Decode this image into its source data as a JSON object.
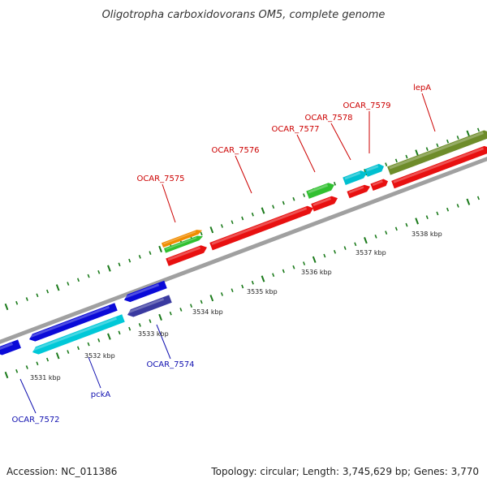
{
  "title": "Oligotropha carboxidovorans OM5, complete genome",
  "footer": {
    "accession": "Accession: NC_011386",
    "summary": "Topology: circular; Length: 3,745,629 bp; Genes: 3,770"
  },
  "colors": {
    "backbone": "#909090",
    "tick": "#1a7a1a",
    "label_red": "#cc0000",
    "label_blue": "#1010b0",
    "leader_red": "#cc0000",
    "leader_blue": "#1010b0"
  },
  "position_ticks": [
    "3531 kbp",
    "3532 kbp",
    "3533 kbp",
    "3534 kbp",
    "3535 kbp",
    "3536 kbp",
    "3537 kbp",
    "3538 kbp"
  ],
  "gene_labels": [
    {
      "text": "OCAR_7575",
      "color": "red"
    },
    {
      "text": "OCAR_7576",
      "color": "red"
    },
    {
      "text": "OCAR_7577",
      "color": "red"
    },
    {
      "text": "OCAR_7578",
      "color": "red"
    },
    {
      "text": "OCAR_7579",
      "color": "red"
    },
    {
      "text": "lepA",
      "color": "red"
    },
    {
      "text": "OCAR_7574",
      "color": "blue"
    },
    {
      "text": "pckA",
      "color": "blue"
    },
    {
      "text": "OCAR_7572",
      "color": "blue"
    }
  ],
  "features": [
    {
      "id": "f1",
      "color": "#0a0ad8",
      "strand": "reverse"
    },
    {
      "id": "f2",
      "color": "#0a0ad8",
      "strand": "reverse"
    },
    {
      "id": "f3",
      "color": "#0a0ad8",
      "strand": "reverse"
    },
    {
      "id": "f4",
      "color": "#00c8d8",
      "strand": "reverse"
    },
    {
      "id": "f5",
      "color": "#3a3aa0",
      "strand": "reverse"
    },
    {
      "id": "f6",
      "color": "#e81010",
      "strand": "forward"
    },
    {
      "id": "f7",
      "color": "#e81010",
      "strand": "forward"
    },
    {
      "id": "f8",
      "color": "#e81010",
      "strand": "forward"
    },
    {
      "id": "f9",
      "color": "#e81010",
      "strand": "forward"
    },
    {
      "id": "f10",
      "color": "#e81010",
      "strand": "forward"
    },
    {
      "id": "f11",
      "color": "#e81010",
      "strand": "forward"
    },
    {
      "id": "f12",
      "color": "#f08c00",
      "strand": "forward"
    },
    {
      "id": "f13",
      "color": "#30c030",
      "strand": "forward"
    },
    {
      "id": "f14",
      "color": "#30c030",
      "strand": "forward"
    },
    {
      "id": "f15",
      "color": "#00c0d0",
      "strand": "forward"
    },
    {
      "id": "f16",
      "color": "#00c0d0",
      "strand": "forward"
    },
    {
      "id": "f17",
      "color": "#6e8c2a",
      "strand": "forward"
    }
  ]
}
